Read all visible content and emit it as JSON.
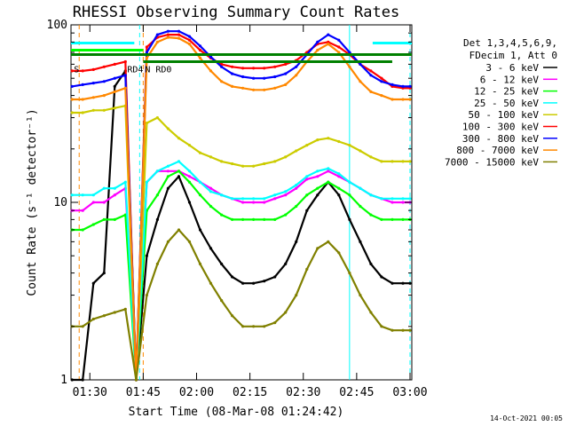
{
  "chart_data": {
    "type": "line",
    "title": "RHESSI Observing Summary Count Rates",
    "xlabel": "Start Time (08-Mar-08 01:24:42)",
    "ylabel": "Count Rate (s⁻¹ detector⁻¹)",
    "y_scale": "log",
    "ylim": [
      1,
      100
    ],
    "xlim": [
      "01:24:42",
      "03:00:30"
    ],
    "x_tick_labels": [
      "01:30",
      "01:45",
      "02:00",
      "02:15",
      "02:30",
      "02:45",
      "03:00"
    ],
    "x_tick_values": [
      "01:30",
      "01:45",
      "02:00",
      "02:15",
      "02:30",
      "02:45",
      "03:00"
    ],
    "y_tick_labels": [
      "1",
      "10",
      "100"
    ],
    "y_tick_values": [
      1,
      10,
      100
    ],
    "legend": {
      "placement": "right",
      "header": [
        "Det 1,3,4,5,6,9,",
        "FDecim 1, Att 0"
      ],
      "entries": [
        {
          "label": "3 - 6 keV",
          "color": "#000000"
        },
        {
          "label": "6 - 12 keV",
          "color": "#ff00ff"
        },
        {
          "label": "12 - 25 keV",
          "color": "#00ff00"
        },
        {
          "label": "25 - 50 keV",
          "color": "#00ffff"
        },
        {
          "label": "50 - 100 keV",
          "color": "#cccc00"
        },
        {
          "label": "100 - 300 keV",
          "color": "#ff0000"
        },
        {
          "label": "300 - 800 keV",
          "color": "#0000ff"
        },
        {
          "label": "800 - 7000 keV",
          "color": "#ff8800"
        },
        {
          "label": "7000 - 15000 keV",
          "color": "#808000"
        }
      ]
    },
    "annotations": [
      {
        "label": "RD4",
        "x": "01:40"
      },
      {
        "label": "RD0",
        "x": "01:48"
      },
      {
        "label": "S",
        "x": "01:25"
      },
      {
        "label": "N",
        "x": "01:45"
      }
    ],
    "flag_bars": [
      {
        "color": "#00ffff",
        "segments": [
          [
            "01:24:42",
            "01:42:30"
          ],
          [
            "02:49:30",
            "03:00:30"
          ]
        ],
        "level": 79
      },
      {
        "color": "#00ff00",
        "segments": [
          [
            "01:24:42",
            "01:45:00"
          ]
        ],
        "level": 72
      },
      {
        "color": "#008000",
        "segments": [
          [
            "01:24:42",
            "03:00:30"
          ]
        ],
        "level": 68
      },
      {
        "color": "#008000",
        "segments": [
          [
            "01:45:00",
            "02:55:00"
          ]
        ],
        "level": 62
      }
    ],
    "vertical_markers": [
      {
        "x": "01:27",
        "color": "#ff8800",
        "style": "dashed"
      },
      {
        "x": "01:44",
        "color": "#00ffff",
        "style": "dashed"
      },
      {
        "x": "01:45",
        "color": "#ff8800",
        "style": "dashed"
      },
      {
        "x": "02:43",
        "color": "#00ffff",
        "style": "solid"
      },
      {
        "x": "03:00",
        "color": "#00ffff",
        "style": "dashed"
      }
    ],
    "x": [
      "01:25",
      "01:28",
      "01:31",
      "01:34",
      "01:37",
      "01:40",
      "01:43",
      "01:46",
      "01:49",
      "01:52",
      "01:55",
      "01:58",
      "02:01",
      "02:04",
      "02:07",
      "02:10",
      "02:13",
      "02:16",
      "02:19",
      "02:22",
      "02:25",
      "02:28",
      "02:31",
      "02:34",
      "02:37",
      "02:40",
      "02:43",
      "02:46",
      "02:49",
      "02:52",
      "02:55",
      "02:58",
      "03:00"
    ],
    "series": [
      {
        "name": "3 - 6 keV",
        "color": "#000000",
        "values": [
          1.0,
          1.0,
          3.5,
          4.0,
          45,
          55,
          1.0,
          5,
          8,
          12,
          14,
          10,
          7,
          5.5,
          4.5,
          3.8,
          3.5,
          3.5,
          3.6,
          3.8,
          4.5,
          6,
          9,
          11,
          13,
          11,
          8,
          6,
          4.5,
          3.8,
          3.5,
          3.5,
          3.5
        ]
      },
      {
        "name": "6 - 12 keV",
        "color": "#ff00ff",
        "values": [
          9,
          9,
          10,
          10,
          11,
          12,
          1.0,
          13,
          15,
          15,
          15,
          14,
          13,
          12,
          11,
          10.5,
          10,
          10,
          10,
          10.5,
          11,
          12,
          13.5,
          14,
          15,
          14,
          13,
          12,
          11,
          10.5,
          10,
          10,
          10
        ]
      },
      {
        "name": "12 - 25 keV",
        "color": "#00ff00",
        "values": [
          7,
          7,
          7.5,
          8,
          8,
          8.5,
          1.0,
          9,
          11,
          14,
          15,
          13,
          11,
          9.5,
          8.5,
          8,
          8,
          8,
          8,
          8,
          8.5,
          9.5,
          11,
          12,
          13,
          12,
          11,
          9.5,
          8.5,
          8,
          8,
          8,
          8
        ]
      },
      {
        "name": "25 - 50 keV",
        "color": "#00ffff",
        "values": [
          11,
          11,
          11,
          12,
          12,
          13,
          1.0,
          13,
          15,
          16,
          17,
          15,
          13,
          11.5,
          11,
          10.5,
          10.5,
          10.5,
          10.5,
          11,
          11.5,
          12.5,
          14,
          15,
          15.5,
          14.5,
          13,
          12,
          11,
          10.5,
          10.5,
          10.5,
          10.5
        ]
      },
      {
        "name": "50 - 100 keV",
        "color": "#cccc00",
        "values": [
          32,
          32,
          33,
          33,
          34,
          35,
          1.0,
          28,
          30,
          26,
          23,
          21,
          19,
          18,
          17,
          16.5,
          16,
          16,
          16.5,
          17,
          18,
          19.5,
          21,
          22.5,
          23,
          22,
          21,
          19.5,
          18,
          17,
          17,
          17,
          17
        ]
      },
      {
        "name": "100 - 300 keV",
        "color": "#ff0000",
        "values": [
          55,
          55,
          56,
          58,
          60,
          62,
          1.0,
          75,
          85,
          88,
          88,
          82,
          72,
          65,
          60,
          58,
          57,
          57,
          57,
          58,
          60,
          63,
          70,
          78,
          80,
          75,
          68,
          60,
          55,
          50,
          45,
          44,
          44
        ]
      },
      {
        "name": "300 - 800 keV",
        "color": "#0000ff",
        "values": [
          45,
          46,
          47,
          48,
          50,
          52,
          1.0,
          70,
          88,
          92,
          92,
          86,
          76,
          66,
          58,
          53,
          51,
          50,
          50,
          51,
          53,
          58,
          68,
          80,
          88,
          82,
          70,
          60,
          52,
          48,
          46,
          45,
          45
        ]
      },
      {
        "name": "800 - 7000 keV",
        "color": "#ff8800",
        "values": [
          38,
          38,
          39,
          40,
          42,
          44,
          1.0,
          65,
          80,
          85,
          84,
          78,
          65,
          55,
          48,
          45,
          44,
          43,
          43,
          44,
          46,
          52,
          62,
          72,
          78,
          70,
          58,
          48,
          42,
          40,
          38,
          38,
          38
        ]
      },
      {
        "name": "7000 - 15000 keV",
        "color": "#808000",
        "values": [
          2.0,
          2.0,
          2.2,
          2.3,
          2.4,
          2.5,
          1.0,
          3,
          4.5,
          6,
          7,
          6,
          4.5,
          3.5,
          2.8,
          2.3,
          2.0,
          2.0,
          2.0,
          2.1,
          2.4,
          3,
          4.2,
          5.5,
          6,
          5.2,
          4,
          3,
          2.4,
          2.0,
          1.9,
          1.9,
          1.9
        ]
      }
    ]
  },
  "footer": {
    "date": "14-Oct-2021 00:05"
  }
}
